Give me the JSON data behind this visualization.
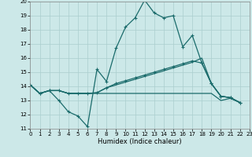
{
  "xlabel": "Humidex (Indice chaleur)",
  "xlim": [
    0,
    23
  ],
  "ylim": [
    11,
    20
  ],
  "xticks": [
    0,
    1,
    2,
    3,
    4,
    5,
    6,
    7,
    8,
    9,
    10,
    11,
    12,
    13,
    14,
    15,
    16,
    17,
    18,
    19,
    20,
    21,
    22,
    23
  ],
  "yticks": [
    11,
    12,
    13,
    14,
    15,
    16,
    17,
    18,
    19,
    20
  ],
  "bg_color": "#cce8e8",
  "grid_color": "#aacece",
  "line_color": "#1a6b6b",
  "series1_x": [
    0,
    1,
    2,
    3,
    4,
    5,
    6,
    7,
    8,
    9,
    10,
    11,
    12,
    13,
    14,
    15,
    16,
    17,
    18,
    19,
    20,
    21,
    22
  ],
  "series1_y": [
    14.1,
    13.5,
    13.7,
    13.0,
    12.2,
    11.9,
    11.15,
    15.2,
    14.35,
    16.7,
    18.2,
    18.85,
    20.1,
    19.2,
    18.85,
    19.0,
    16.8,
    17.6,
    15.65,
    14.2,
    13.3,
    13.2,
    12.85
  ],
  "series2_x": [
    0,
    1,
    2,
    3,
    4,
    5,
    6,
    7,
    8,
    9,
    10,
    11,
    12,
    13,
    14,
    15,
    16,
    17,
    18,
    19,
    20,
    21,
    22
  ],
  "series2_y": [
    14.1,
    13.5,
    13.7,
    13.7,
    13.5,
    13.5,
    13.5,
    13.55,
    13.9,
    14.2,
    14.4,
    14.6,
    14.8,
    15.0,
    15.2,
    15.4,
    15.6,
    15.8,
    15.65,
    14.2,
    13.3,
    13.2,
    12.85
  ],
  "series3_x": [
    0,
    1,
    2,
    3,
    4,
    5,
    6,
    7,
    8,
    9,
    10,
    11,
    12,
    13,
    14,
    15,
    16,
    17,
    18,
    19,
    20,
    21,
    22
  ],
  "series3_y": [
    14.1,
    13.5,
    13.7,
    13.7,
    13.5,
    13.5,
    13.5,
    13.5,
    13.5,
    13.5,
    13.5,
    13.5,
    13.5,
    13.5,
    13.5,
    13.5,
    13.5,
    13.5,
    13.5,
    13.5,
    13.0,
    13.15,
    12.85
  ],
  "series4_x": [
    0,
    1,
    2,
    3,
    4,
    5,
    6,
    7,
    8,
    9,
    10,
    11,
    12,
    13,
    14,
    15,
    16,
    17,
    18,
    19,
    20,
    21,
    22
  ],
  "series4_y": [
    14.1,
    13.5,
    13.7,
    13.7,
    13.5,
    13.5,
    13.5,
    13.55,
    13.9,
    14.1,
    14.3,
    14.5,
    14.7,
    14.9,
    15.1,
    15.3,
    15.5,
    15.7,
    16.0,
    14.2,
    13.3,
    13.2,
    12.85
  ]
}
